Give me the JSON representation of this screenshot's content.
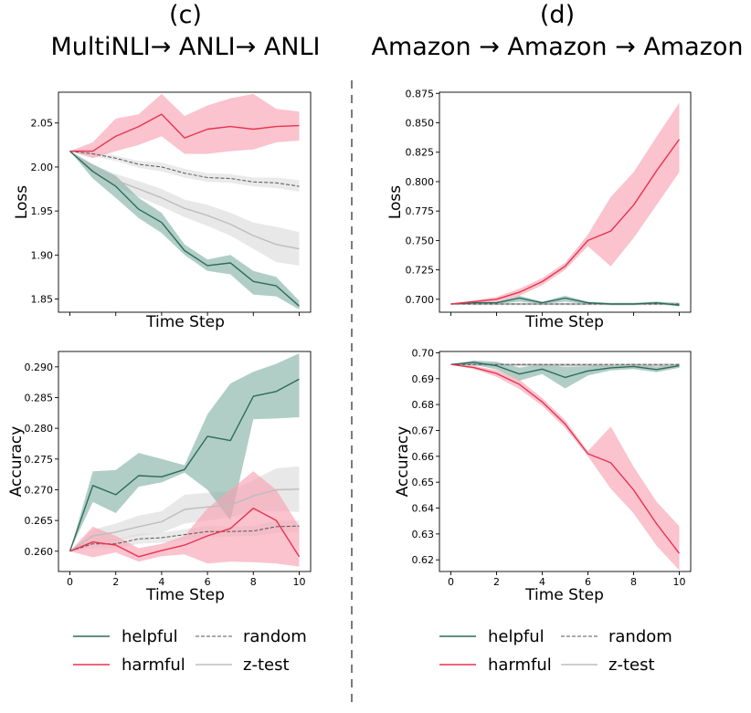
{
  "colors": {
    "helpful": "#2e6b5a",
    "helpful_fill": "#86b3a8",
    "harmful": "#e8334f",
    "harmful_fill": "#f7a3b3",
    "random": "#555555",
    "ztest": "#bdbdbd",
    "ztest_fill": "#d9d9d9",
    "divider": "#333333"
  },
  "panels": [
    {
      "label": "(c)",
      "subtitle": "MultiNLI→ ANLI→ ANLI"
    },
    {
      "label": "(d)",
      "subtitle": "Amazon → Amazon → Amazon"
    }
  ],
  "legend": {
    "entries": [
      {
        "key": "helpful",
        "label": "helpful"
      },
      {
        "key": "random",
        "label": "random"
      },
      {
        "key": "harmful",
        "label": "harmful"
      },
      {
        "key": "ztest",
        "label": "z-test"
      }
    ]
  },
  "chart_data": [
    {
      "id": "c-loss",
      "type": "line",
      "xlabel": "Time Step",
      "ylabel": "Loss",
      "xlim": [
        -0.5,
        10.5
      ],
      "ylim": [
        1.835,
        2.085
      ],
      "yticks": [
        1.85,
        1.9,
        1.95,
        2.0,
        2.05
      ],
      "ytick_labels": [
        "1.85",
        "1.90",
        "1.95",
        "2.00",
        "2.05"
      ],
      "show_xticks": false,
      "x": [
        0,
        1,
        2,
        3,
        4,
        5,
        6,
        7,
        8,
        9,
        10
      ],
      "series": [
        {
          "name": "helpful",
          "values": [
            2.018,
            1.995,
            1.978,
            1.952,
            1.937,
            1.905,
            1.888,
            1.891,
            1.87,
            1.865,
            1.842
          ],
          "lower": [
            2.018,
            1.987,
            1.965,
            1.942,
            1.925,
            1.9,
            1.882,
            1.878,
            1.855,
            1.853,
            1.838
          ],
          "upper": [
            2.018,
            2.003,
            1.99,
            1.965,
            1.948,
            1.912,
            1.895,
            1.9,
            1.882,
            1.875,
            1.848
          ]
        },
        {
          "name": "harmful",
          "values": [
            2.018,
            2.018,
            2.035,
            2.046,
            2.06,
            2.033,
            2.043,
            2.046,
            2.043,
            2.046,
            2.047
          ],
          "lower": [
            2.018,
            2.01,
            2.018,
            2.025,
            2.035,
            2.015,
            2.015,
            2.018,
            2.02,
            2.028,
            2.03
          ],
          "upper": [
            2.018,
            2.028,
            2.055,
            2.06,
            2.083,
            2.058,
            2.07,
            2.078,
            2.083,
            2.066,
            2.063
          ]
        },
        {
          "name": "random",
          "values": [
            2.018,
            2.015,
            2.01,
            2.003,
            2.0,
            1.993,
            1.988,
            1.987,
            1.983,
            1.982,
            1.978
          ],
          "lower": [
            2.018,
            2.012,
            2.007,
            1.999,
            1.995,
            1.988,
            1.983,
            1.982,
            1.978,
            1.976,
            1.972
          ],
          "upper": [
            2.018,
            2.018,
            2.013,
            2.007,
            2.005,
            1.998,
            1.993,
            1.992,
            1.988,
            1.988,
            1.985
          ]
        },
        {
          "name": "ztest",
          "values": [
            2.018,
            1.998,
            1.985,
            1.975,
            1.965,
            1.953,
            1.945,
            1.935,
            1.922,
            1.912,
            1.907
          ],
          "lower": [
            2.018,
            1.993,
            1.978,
            1.966,
            1.955,
            1.943,
            1.933,
            1.922,
            1.907,
            1.892,
            1.888
          ],
          "upper": [
            2.018,
            2.003,
            1.992,
            1.984,
            1.975,
            1.963,
            1.957,
            1.948,
            1.937,
            1.932,
            1.926
          ]
        }
      ]
    },
    {
      "id": "d-loss",
      "type": "line",
      "xlabel": "Time Step",
      "ylabel": "Loss",
      "xlim": [
        -0.5,
        10.5
      ],
      "ylim": [
        0.689,
        0.876
      ],
      "yticks": [
        0.7,
        0.725,
        0.75,
        0.775,
        0.8,
        0.825,
        0.85,
        0.875
      ],
      "ytick_labels": [
        "0.700",
        "0.725",
        "0.750",
        "0.775",
        "0.800",
        "0.825",
        "0.850",
        "0.875"
      ],
      "show_xticks": false,
      "x": [
        0,
        1,
        2,
        3,
        4,
        5,
        6,
        7,
        8,
        9,
        10
      ],
      "series": [
        {
          "name": "helpful",
          "values": [
            0.696,
            0.697,
            0.697,
            0.701,
            0.697,
            0.701,
            0.697,
            0.696,
            0.696,
            0.697,
            0.695
          ],
          "lower": [
            0.696,
            0.696,
            0.696,
            0.698,
            0.696,
            0.698,
            0.696,
            0.695,
            0.695,
            0.696,
            0.694
          ],
          "upper": [
            0.696,
            0.698,
            0.698,
            0.703,
            0.698,
            0.703,
            0.698,
            0.697,
            0.697,
            0.698,
            0.697
          ]
        },
        {
          "name": "harmful",
          "values": [
            0.696,
            0.698,
            0.7,
            0.706,
            0.715,
            0.728,
            0.75,
            0.758,
            0.78,
            0.809,
            0.836
          ],
          "lower": [
            0.696,
            0.697,
            0.698,
            0.703,
            0.712,
            0.725,
            0.745,
            0.728,
            0.752,
            0.78,
            0.808
          ],
          "upper": [
            0.696,
            0.699,
            0.702,
            0.709,
            0.718,
            0.731,
            0.755,
            0.787,
            0.808,
            0.838,
            0.867
          ]
        },
        {
          "name": "random",
          "values": [
            0.696,
            0.696,
            0.696,
            0.696,
            0.696,
            0.696,
            0.696,
            0.696,
            0.696,
            0.696,
            0.696
          ],
          "lower": [
            0.696,
            0.695,
            0.695,
            0.695,
            0.695,
            0.695,
            0.695,
            0.695,
            0.695,
            0.695,
            0.695
          ],
          "upper": [
            0.696,
            0.697,
            0.697,
            0.697,
            0.697,
            0.697,
            0.697,
            0.697,
            0.697,
            0.697,
            0.697
          ]
        },
        {
          "name": "ztest",
          "values": [
            0.696,
            0.696,
            0.696,
            0.696,
            0.696,
            0.696,
            0.696,
            0.696,
            0.696,
            0.696,
            0.696
          ],
          "lower": [
            0.696,
            0.695,
            0.695,
            0.695,
            0.695,
            0.695,
            0.695,
            0.695,
            0.695,
            0.695,
            0.695
          ],
          "upper": [
            0.696,
            0.697,
            0.697,
            0.697,
            0.697,
            0.697,
            0.697,
            0.697,
            0.697,
            0.697,
            0.697
          ]
        }
      ]
    },
    {
      "id": "c-acc",
      "type": "line",
      "xlabel": "Time Step",
      "ylabel": "Accuracy",
      "xlim": [
        -0.5,
        10.5
      ],
      "ylim": [
        0.2567,
        0.2925
      ],
      "yticks": [
        0.26,
        0.265,
        0.27,
        0.275,
        0.28,
        0.285,
        0.29
      ],
      "ytick_labels": [
        "0.260",
        "0.265",
        "0.270",
        "0.275",
        "0.280",
        "0.285",
        "0.290"
      ],
      "show_xticks": true,
      "xticks": [
        0,
        2,
        4,
        6,
        8,
        10
      ],
      "xtick_labels": [
        "0",
        "2",
        "4",
        "6",
        "8",
        "10"
      ],
      "x": [
        0,
        1,
        2,
        3,
        4,
        5,
        6,
        7,
        8,
        9,
        10
      ],
      "series": [
        {
          "name": "helpful",
          "values": [
            0.26,
            0.2707,
            0.2692,
            0.2723,
            0.2721,
            0.2733,
            0.2787,
            0.278,
            0.2852,
            0.286,
            0.288
          ],
          "lower": [
            0.26,
            0.268,
            0.2662,
            0.2705,
            0.2712,
            0.2728,
            0.27,
            0.265,
            0.2815,
            0.2816,
            0.2818
          ],
          "upper": [
            0.26,
            0.273,
            0.2732,
            0.276,
            0.275,
            0.274,
            0.2823,
            0.2873,
            0.2892,
            0.2905,
            0.2922
          ]
        },
        {
          "name": "harmful",
          "values": [
            0.26,
            0.2615,
            0.261,
            0.2591,
            0.2601,
            0.261,
            0.2625,
            0.2637,
            0.267,
            0.265,
            0.2591
          ],
          "lower": [
            0.26,
            0.259,
            0.2598,
            0.2583,
            0.2592,
            0.2595,
            0.258,
            0.2583,
            0.2582,
            0.258,
            0.2575
          ],
          "upper": [
            0.26,
            0.264,
            0.2625,
            0.2605,
            0.2612,
            0.2625,
            0.267,
            0.27,
            0.273,
            0.27,
            0.264
          ]
        },
        {
          "name": "random",
          "values": [
            0.26,
            0.2612,
            0.2612,
            0.262,
            0.2622,
            0.2627,
            0.2632,
            0.2632,
            0.2633,
            0.264,
            0.2641
          ],
          "lower": [
            0.26,
            0.2605,
            0.2605,
            0.2612,
            0.2614,
            0.2618,
            0.2623,
            0.2624,
            0.2625,
            0.263,
            0.2632
          ],
          "upper": [
            0.26,
            0.2619,
            0.2619,
            0.2628,
            0.263,
            0.2636,
            0.2641,
            0.264,
            0.2641,
            0.265,
            0.265
          ]
        },
        {
          "name": "ztest",
          "values": [
            0.26,
            0.2625,
            0.2631,
            0.264,
            0.2648,
            0.2668,
            0.2672,
            0.2675,
            0.269,
            0.27,
            0.2701
          ],
          "lower": [
            0.26,
            0.2615,
            0.2618,
            0.2625,
            0.263,
            0.2645,
            0.265,
            0.2655,
            0.2665,
            0.2665,
            0.2664
          ],
          "upper": [
            0.26,
            0.2635,
            0.2645,
            0.2658,
            0.2665,
            0.2692,
            0.2695,
            0.2698,
            0.2716,
            0.2735,
            0.2738
          ]
        }
      ]
    },
    {
      "id": "d-acc",
      "type": "line",
      "xlabel": "Time Step",
      "ylabel": "Accuracy",
      "xlim": [
        -0.5,
        10.5
      ],
      "ylim": [
        0.6155,
        0.7005
      ],
      "yticks": [
        0.62,
        0.63,
        0.64,
        0.65,
        0.66,
        0.67,
        0.68,
        0.69,
        0.7
      ],
      "ytick_labels": [
        "0.62",
        "0.63",
        "0.64",
        "0.65",
        "0.66",
        "0.67",
        "0.68",
        "0.69",
        "0.70"
      ],
      "show_xticks": true,
      "xticks": [
        0,
        2,
        4,
        6,
        8,
        10
      ],
      "xtick_labels": [
        "0",
        "2",
        "4",
        "6",
        "8",
        "10"
      ],
      "x": [
        0,
        1,
        2,
        3,
        4,
        5,
        6,
        7,
        8,
        9,
        10
      ],
      "series": [
        {
          "name": "helpful",
          "values": [
            0.6955,
            0.6963,
            0.695,
            0.6918,
            0.6937,
            0.6905,
            0.693,
            0.6942,
            0.6947,
            0.6935,
            0.695
          ],
          "lower": [
            0.6955,
            0.6955,
            0.6935,
            0.6892,
            0.6918,
            0.6862,
            0.6912,
            0.6932,
            0.6937,
            0.6925,
            0.6942
          ],
          "upper": [
            0.6955,
            0.697,
            0.6965,
            0.6943,
            0.6955,
            0.6945,
            0.6948,
            0.6952,
            0.6957,
            0.6945,
            0.6958
          ]
        },
        {
          "name": "harmful",
          "values": [
            0.6955,
            0.6943,
            0.692,
            0.6878,
            0.681,
            0.6725,
            0.661,
            0.6575,
            0.647,
            0.634,
            0.6225
          ],
          "lower": [
            0.6955,
            0.6937,
            0.6907,
            0.686,
            0.6795,
            0.671,
            0.66,
            0.6475,
            0.638,
            0.6255,
            0.616
          ],
          "upper": [
            0.6955,
            0.6949,
            0.6933,
            0.6896,
            0.6825,
            0.674,
            0.662,
            0.6715,
            0.656,
            0.6425,
            0.633
          ]
        },
        {
          "name": "random",
          "values": [
            0.6955,
            0.6955,
            0.6955,
            0.6955,
            0.6955,
            0.6955,
            0.6955,
            0.6955,
            0.6955,
            0.6955,
            0.6955
          ],
          "lower": [
            0.6955,
            0.6951,
            0.6951,
            0.6951,
            0.6951,
            0.6951,
            0.6951,
            0.6951,
            0.6951,
            0.6951,
            0.6951
          ],
          "upper": [
            0.6955,
            0.6959,
            0.6959,
            0.6959,
            0.6959,
            0.6959,
            0.6959,
            0.6959,
            0.6959,
            0.6959,
            0.6959
          ]
        },
        {
          "name": "ztest",
          "values": [
            0.6955,
            0.6953,
            0.6952,
            0.6953,
            0.6952,
            0.6951,
            0.6951,
            0.695,
            0.6951,
            0.695,
            0.695
          ],
          "lower": [
            0.6955,
            0.6948,
            0.6947,
            0.6948,
            0.6947,
            0.6946,
            0.6946,
            0.6945,
            0.6946,
            0.6945,
            0.6945
          ],
          "upper": [
            0.6955,
            0.6958,
            0.6957,
            0.6958,
            0.6957,
            0.6956,
            0.6956,
            0.6955,
            0.6956,
            0.6955,
            0.6955
          ]
        }
      ]
    }
  ]
}
